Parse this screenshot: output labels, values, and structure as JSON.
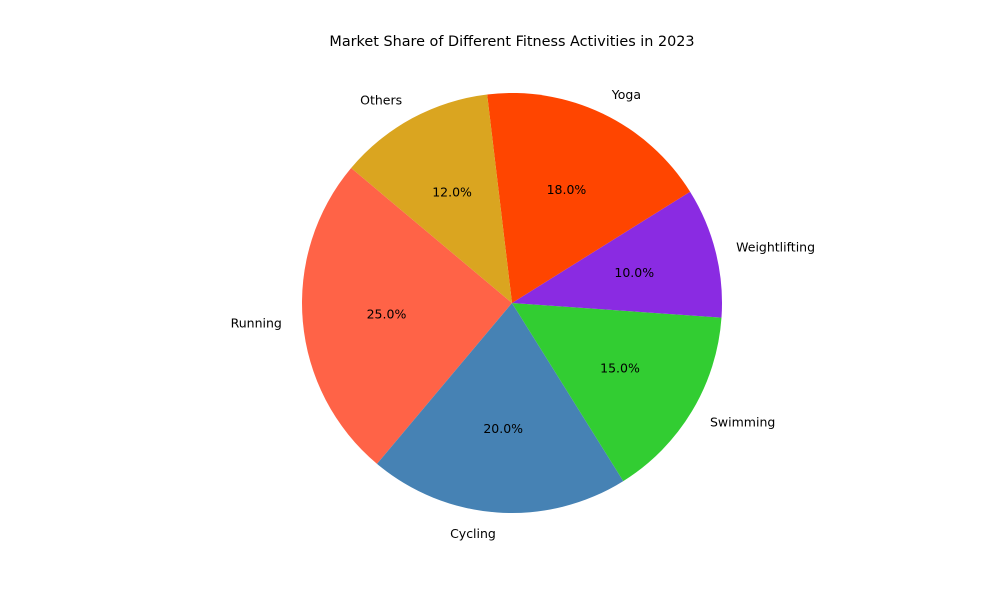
{
  "chart_data": {
    "type": "pie",
    "title": "Market Share of Different Fitness Activities in 2023",
    "start_angle_deg": 140,
    "direction": "counterclockwise",
    "pct_format": "{v}%",
    "categories": [
      "Running",
      "Cycling",
      "Swimming",
      "Weightlifting",
      "Yoga",
      "Others"
    ],
    "values": [
      25.0,
      20.0,
      15.0,
      10.0,
      18.0,
      12.0
    ],
    "value_labels": [
      "25.0%",
      "20.0%",
      "15.0%",
      "10.0%",
      "18.0%",
      "12.0%"
    ],
    "colors": [
      "#FF6347",
      "#4682B4",
      "#32CD32",
      "#8A2BE2",
      "#FF4500",
      "#DAA520"
    ]
  }
}
